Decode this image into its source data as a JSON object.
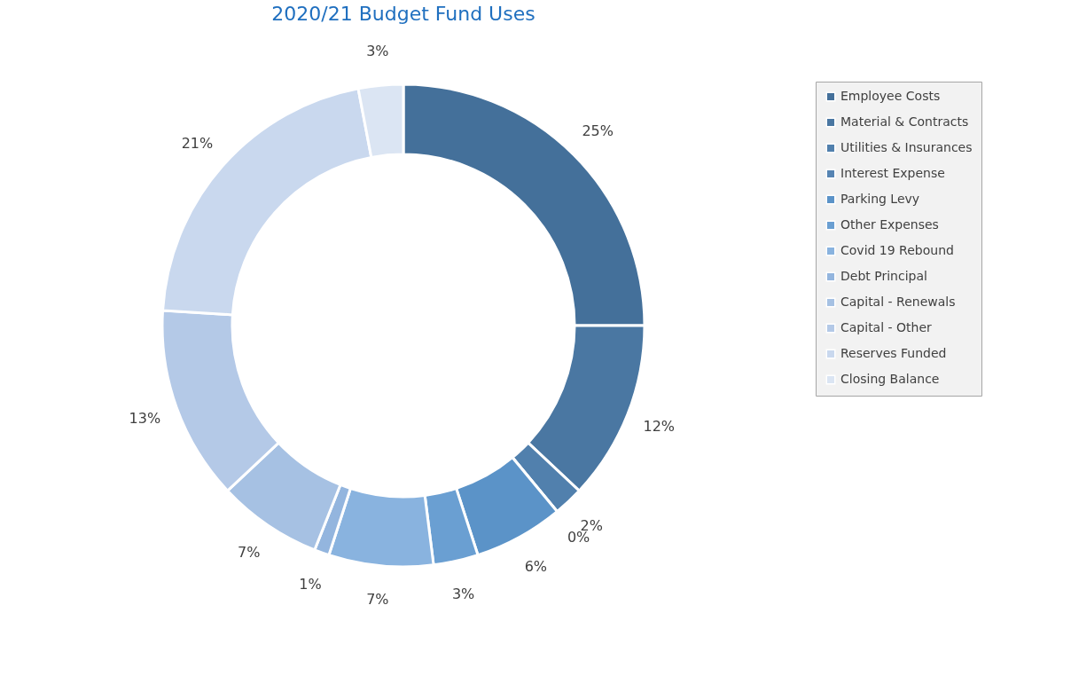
{
  "chart_data": {
    "type": "donut",
    "title": "2020/21 Budget Fund Uses",
    "categories": [
      "Employee Costs",
      "Material & Contracts",
      "Utilities & Insurances",
      "Interest Expense",
      "Parking Levy",
      "Other Expenses",
      "Covid 19 Rebound",
      "Debt Principal",
      "Capital - Renewals",
      "Capital - Other",
      "Reserves Funded",
      "Closing Balance"
    ],
    "values": [
      25,
      12,
      2,
      0,
      6,
      3,
      7,
      1,
      7,
      13,
      21,
      3
    ],
    "value_labels": [
      "25%",
      "12%",
      "2%",
      "0%",
      "6%",
      "3%",
      "7%",
      "1%",
      "7%",
      "13%",
      "21%",
      "3%"
    ],
    "colors": [
      "#44709a",
      "#4a77a2",
      "#5180ad",
      "#5684b3",
      "#5b93c8",
      "#6a9fd2",
      "#89b3df",
      "#93b5de",
      "#a6c1e3",
      "#b4c9e7",
      "#c9d8ee",
      "#dbe5f3"
    ],
    "legend": "right"
  }
}
